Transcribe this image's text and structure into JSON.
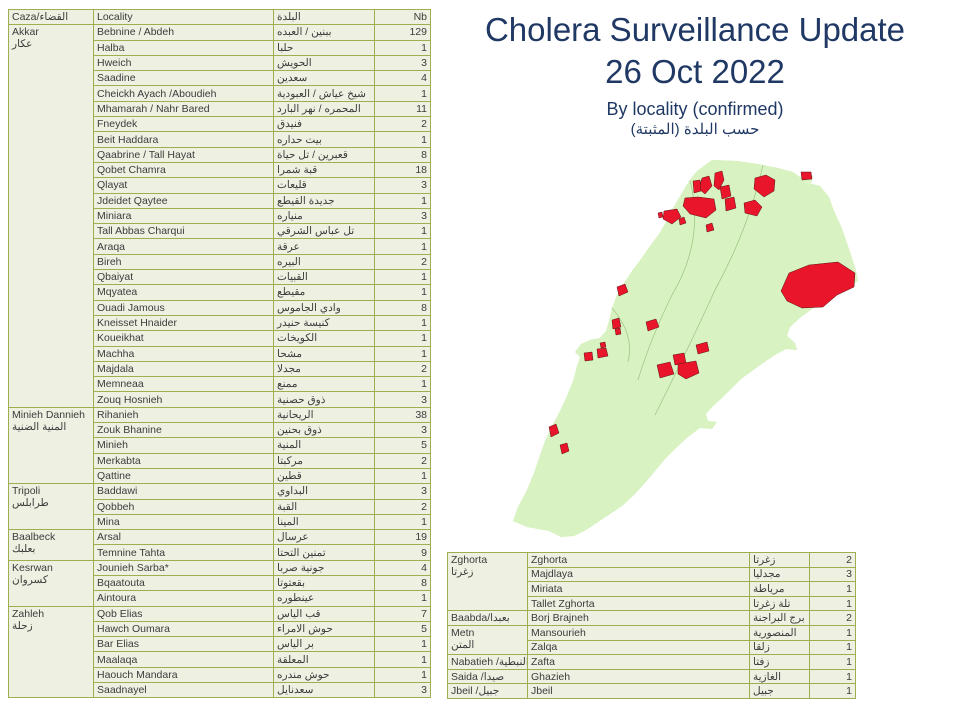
{
  "title": {
    "line1": "Cholera Surveillance Update",
    "line2": "26 Oct 2022",
    "subtitle_en": "By locality (confirmed)",
    "subtitle_ar": "حسب البلدة (المثبتة)"
  },
  "colors": {
    "title_navy": "#1f3864",
    "table_border": "#a0ae52",
    "cell_bg": "#eef0e2",
    "text": "#3c3c3c",
    "map_green": "#d8f2c1",
    "map_line_green": "#a9cf8f",
    "map_outline_green": "#8fbf76",
    "case_red": "#e8152b",
    "case_red_edge": "#5d1414"
  },
  "left_table": {
    "headers": {
      "caza": "Caza/القضاء",
      "locality": "Locality",
      "locality_ar": "البلدة",
      "nb": "Nb"
    },
    "groups": [
      {
        "en": "Akkar",
        "ar": "عكار",
        "rows": [
          [
            "Bebnine / Abdeh",
            "ببنين / العبده",
            "129"
          ],
          [
            "Halba",
            "حلبا",
            "1"
          ],
          [
            "Hweich",
            "الحويش",
            "3"
          ],
          [
            "Saadine",
            "سعدين",
            "4"
          ],
          [
            "Cheickh Ayach /Aboudieh",
            "شيخ عياش / العبودية",
            "1"
          ],
          [
            "Mhamarah / Nahr Bared",
            "المحمره / نهر البارد",
            "11"
          ],
          [
            "Fneydek",
            "فنيدق",
            "2"
          ],
          [
            "Beit Haddara",
            "بيت حداره",
            "1"
          ],
          [
            "Qaabrine / Tall Hayat",
            "قعبرين / تل حياة",
            "8"
          ],
          [
            "Qobet Chamra",
            "قبة شمرا",
            "18"
          ],
          [
            "Qlayat",
            "قليعات",
            "3"
          ],
          [
            "Jdeidet Qaytee",
            "جديدة القيطع",
            "1"
          ],
          [
            "Miniara",
            "منياره",
            "3"
          ],
          [
            "Tall Abbas Charqui",
            "تل عباس الشرقي",
            "1"
          ],
          [
            "Araqa",
            "عرقة",
            "1"
          ],
          [
            "Bireh",
            "البيره",
            "2"
          ],
          [
            "Qbaiyat",
            "القبيات",
            "1"
          ],
          [
            "Mqyatea",
            "مقيطع",
            "1"
          ],
          [
            "Ouadi Jamous",
            "وادي الجاموس",
            "8"
          ],
          [
            "Kneisset Hnaider",
            "كنيسة حنيدر",
            "1"
          ],
          [
            "Koueikhat",
            "الكويخات",
            "1"
          ],
          [
            "Machha",
            "مشحا",
            "1"
          ],
          [
            "Majdala",
            "مجدلا",
            "2"
          ],
          [
            "Memneaa",
            "ممنع",
            "1"
          ],
          [
            "Zouq Hosnieh",
            "ذوق حصنية",
            "3"
          ]
        ]
      },
      {
        "en": "Minieh Dannieh",
        "ar": "المنية الضنية",
        "rows": [
          [
            "Rihanieh",
            "الريحانية",
            "38"
          ],
          [
            "Zouk Bhanine",
            "ذوق بحنين",
            "3"
          ],
          [
            "Minieh",
            "المنية",
            "5"
          ],
          [
            "Merkabta",
            "مركبتا",
            "2"
          ],
          [
            "Qattine",
            "قطين",
            "1"
          ]
        ]
      },
      {
        "en": "Tripoli",
        "ar": "طرابلس",
        "rows": [
          [
            "Baddawi",
            "البداوي",
            "3"
          ],
          [
            "Qobbeh",
            "القبة",
            "2"
          ],
          [
            "Mina",
            "المينا",
            "1"
          ]
        ]
      },
      {
        "en": "Baalbeck",
        "ar": "بعلبك",
        "rows": [
          [
            "Arsal",
            "عرسال",
            "19"
          ],
          [
            "Temnine Tahta",
            "تمنين التحتا",
            "9"
          ]
        ]
      },
      {
        "en": "Kesrwan",
        "ar": "كسروان",
        "rows": [
          [
            "Jounieh Sarba*",
            "جونية صربا",
            "4"
          ],
          [
            "Bqaatouta",
            "بقعتوتا",
            "8"
          ],
          [
            "Aintoura",
            "عينطوره",
            "1"
          ]
        ]
      },
      {
        "en": "Zahleh",
        "ar": "زحلة",
        "rows": [
          [
            "Qob Elias",
            "قب الياس",
            "7"
          ],
          [
            "Hawch Oumara",
            "حوش الامراء",
            "5"
          ],
          [
            "Bar Elias",
            "بر الياس",
            "1"
          ],
          [
            "Maalaqa",
            "المعلقة",
            "1"
          ],
          [
            "Haouch Mandara",
            "حوش مندره",
            "1"
          ],
          [
            "Saadnayel",
            "سعدنايل",
            "3"
          ]
        ]
      }
    ]
  },
  "bottom_table": {
    "groups": [
      {
        "en": "Zghorta",
        "ar": "زغرتا",
        "rows": [
          [
            "Zghorta",
            "زغرتا",
            "2"
          ],
          [
            "Majdlaya",
            "مجدليا",
            "3"
          ],
          [
            "Miriata",
            "مرياطة",
            "1"
          ],
          [
            "Tallet Zghorta",
            "تلة زغرتا",
            "1"
          ]
        ]
      },
      {
        "en": "Baabda/بعبدا",
        "ar": "",
        "rows": [
          [
            "Borj Brajneh",
            "برج البراجنة",
            "2"
          ]
        ]
      },
      {
        "en": "Metn",
        "ar": "المتن",
        "rows": [
          [
            "Mansourieh",
            "المنصورية",
            "1"
          ],
          [
            "Zalqa",
            "زلقا",
            "1"
          ]
        ]
      },
      {
        "en": "Nabatieh /النبطية",
        "ar": "",
        "rows": [
          [
            "Zafta",
            "زفتا",
            "1"
          ]
        ]
      },
      {
        "en": "Saida /صيدا",
        "ar": "",
        "rows": [
          [
            "Ghazieh",
            "الغازية",
            "1"
          ]
        ]
      },
      {
        "en": "Jbeil /جبيل",
        "ar": "",
        "rows": [
          [
            "Jbeil",
            "جبيل",
            "1"
          ]
        ]
      }
    ]
  },
  "map": {
    "description": "Lebanon localities choropleth; confirmed-case localities shaded red",
    "red_regions": [
      "715,173 722,171 724,180 719,190 714,186",
      "702,178 709,176 712,186 705,194 699,189",
      "693,181 700,180 701,191 694,193",
      "685,198 698,197 714,199 716,210 706,218 690,214 683,206",
      "720,187 729,185 731,196 722,199",
      "725,199 734,197 736,208 726,211",
      "755,178 766,175 775,180 774,191 764,197 754,189",
      "744,203 755,200 762,207 757,216 745,213",
      "801,172 811,172 812,179 802,180",
      "664,211 677,209 681,217 672,224 663,219",
      "658,213 662,212 663,217 659,218",
      "706,225 712,223 714,230 707,232",
      "679,219 684,217 686,223 680,225",
      "617,287 625,284 628,292 619,296",
      "612,320 619,318 621,327 613,329",
      "615,329 620,328 621,334 616,335",
      "646,322 656,319 659,327 648,331",
      "600,343 605,342 606,347 601,348",
      "597,349 606,348 608,356 598,358",
      "584,353 592,352 593,360 585,361",
      "673,355 684,353 686,363 675,365",
      "657,365 670,362 674,374 660,378",
      "678,364 696,361 699,373 686,379 678,374",
      "696,345 707,342 709,351 698,354",
      "549,427 556,424 559,433 551,437",
      "560,445 567,443 569,451 562,454",
      "781,291 789,273 809,265 838,262 855,273 854,287 837,295 823,307 802,308 787,301"
    ]
  }
}
